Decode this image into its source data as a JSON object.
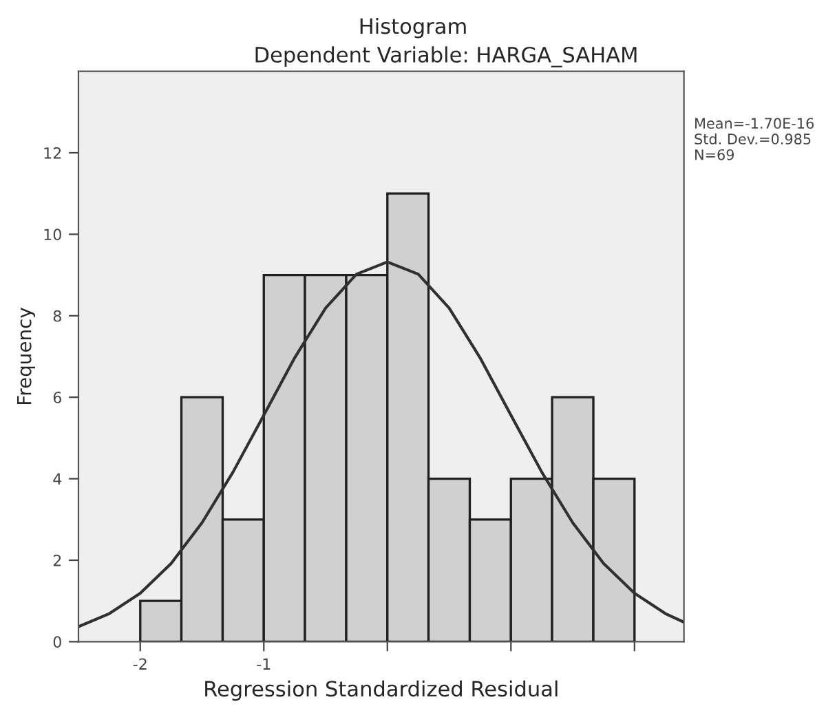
{
  "chart_data": {
    "type": "histogram",
    "title": "Histogram",
    "subtitle": "Dependent Variable: HARGA_SAHAM",
    "xlabel": "Regression Standardized Residual",
    "ylabel": "Frequency",
    "bins": [
      -2,
      -1.667,
      -1.333,
      -1,
      -0.667,
      -0.333,
      0,
      0.333,
      0.667,
      1,
      1.333,
      1.667,
      2
    ],
    "values": [
      1,
      6,
      3,
      9,
      9,
      9,
      11,
      4,
      3,
      4,
      6,
      4
    ],
    "color": "#d0d0d0",
    "series": [
      {
        "type": "line",
        "color": "#303030",
        "x": [
          -2.5,
          -2.25,
          -2,
          -1.75,
          -1.5,
          -1.25,
          -1,
          -0.75,
          -0.5,
          -0.25,
          0,
          0.25,
          0.5,
          0.75,
          1,
          1.25,
          1.5,
          1.75,
          2,
          2.25,
          2.4
        ],
        "values": [
          0.37,
          0.69,
          1.19,
          1.92,
          2.92,
          4.16,
          5.56,
          6.97,
          8.19,
          9.02,
          9.32,
          9.02,
          8.19,
          6.97,
          5.56,
          4.16,
          2.92,
          1.92,
          1.19,
          0.69,
          0.48
        ]
      }
    ],
    "xlim": [
      -2.5,
      2.4
    ],
    "ylim": [
      0,
      14
    ],
    "xticks": [
      -2,
      -1,
      {
        "value": 0,
        "label": null
      },
      {
        "value": 1,
        "label": null
      },
      {
        "value": 2,
        "label": null
      }
    ],
    "yticks": [
      0,
      2,
      4,
      6,
      8,
      10,
      12
    ],
    "annotations": [
      "Mean=-1.70E-16",
      "Std. Dev.=0.985",
      "N=69"
    ],
    "grid": false
  }
}
